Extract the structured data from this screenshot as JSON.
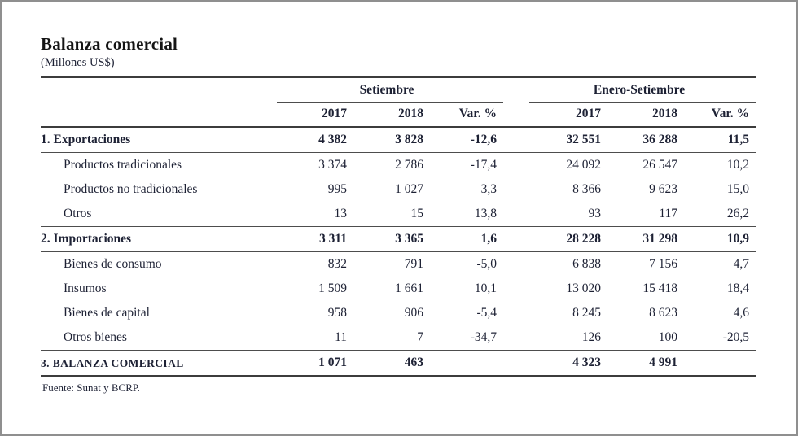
{
  "chart_data": {
    "type": "table",
    "title": "Balanza comercial",
    "subtitle": "(Millones US$)",
    "source": "Fuente: Sunat y BCRP.",
    "column_groups": [
      {
        "label": "Setiembre",
        "columns": [
          "2017",
          "2018",
          "Var. %"
        ]
      },
      {
        "label": "Enero-Setiembre",
        "columns": [
          "2017",
          "2018",
          "Var. %"
        ]
      }
    ],
    "rows": [
      {
        "label": "1. Exportaciones",
        "bold": true,
        "indent": false,
        "rule_below": true,
        "heavy_rule_below": false,
        "caps": false,
        "values": [
          "4 382",
          "3 828",
          "-12,6",
          "32 551",
          "36 288",
          "11,5"
        ]
      },
      {
        "label": "Productos tradicionales",
        "bold": false,
        "indent": true,
        "rule_below": false,
        "heavy_rule_below": false,
        "caps": false,
        "values": [
          "3 374",
          "2 786",
          "-17,4",
          "24 092",
          "26 547",
          "10,2"
        ]
      },
      {
        "label": "Productos no tradicionales",
        "bold": false,
        "indent": true,
        "rule_below": false,
        "heavy_rule_below": false,
        "caps": false,
        "values": [
          "995",
          "1 027",
          "3,3",
          "8 366",
          "9 623",
          "15,0"
        ]
      },
      {
        "label": "Otros",
        "bold": false,
        "indent": true,
        "rule_below": true,
        "heavy_rule_below": false,
        "caps": false,
        "values": [
          "13",
          "15",
          "13,8",
          "93",
          "117",
          "26,2"
        ]
      },
      {
        "label": "2. Importaciones",
        "bold": true,
        "indent": false,
        "rule_below": true,
        "heavy_rule_below": false,
        "caps": false,
        "values": [
          "3 311",
          "3 365",
          "1,6",
          "28 228",
          "31 298",
          "10,9"
        ]
      },
      {
        "label": "Bienes de consumo",
        "bold": false,
        "indent": true,
        "rule_below": false,
        "heavy_rule_below": false,
        "caps": false,
        "values": [
          "832",
          "791",
          "-5,0",
          "6 838",
          "7 156",
          "4,7"
        ]
      },
      {
        "label": "Insumos",
        "bold": false,
        "indent": true,
        "rule_below": false,
        "heavy_rule_below": false,
        "caps": false,
        "values": [
          "1 509",
          "1 661",
          "10,1",
          "13 020",
          "15 418",
          "18,4"
        ]
      },
      {
        "label": "Bienes de capital",
        "bold": false,
        "indent": true,
        "rule_below": false,
        "heavy_rule_below": false,
        "caps": false,
        "values": [
          "958",
          "906",
          "-5,4",
          "8 245",
          "8 623",
          "4,6"
        ]
      },
      {
        "label": "Otros bienes",
        "bold": false,
        "indent": true,
        "rule_below": true,
        "heavy_rule_below": false,
        "caps": false,
        "values": [
          "11",
          "7",
          "-34,7",
          "126",
          "100",
          "-20,5"
        ]
      },
      {
        "label": "3. BALANZA COMERCIAL",
        "bold": true,
        "indent": false,
        "rule_below": false,
        "heavy_rule_below": true,
        "caps": true,
        "values": [
          "1 071",
          "463",
          "",
          "4 323",
          "4 991",
          ""
        ]
      }
    ]
  },
  "colors": {
    "text": "#1d2134",
    "rule": "#3c3c3c",
    "frame_border": "#8f8f8f"
  }
}
